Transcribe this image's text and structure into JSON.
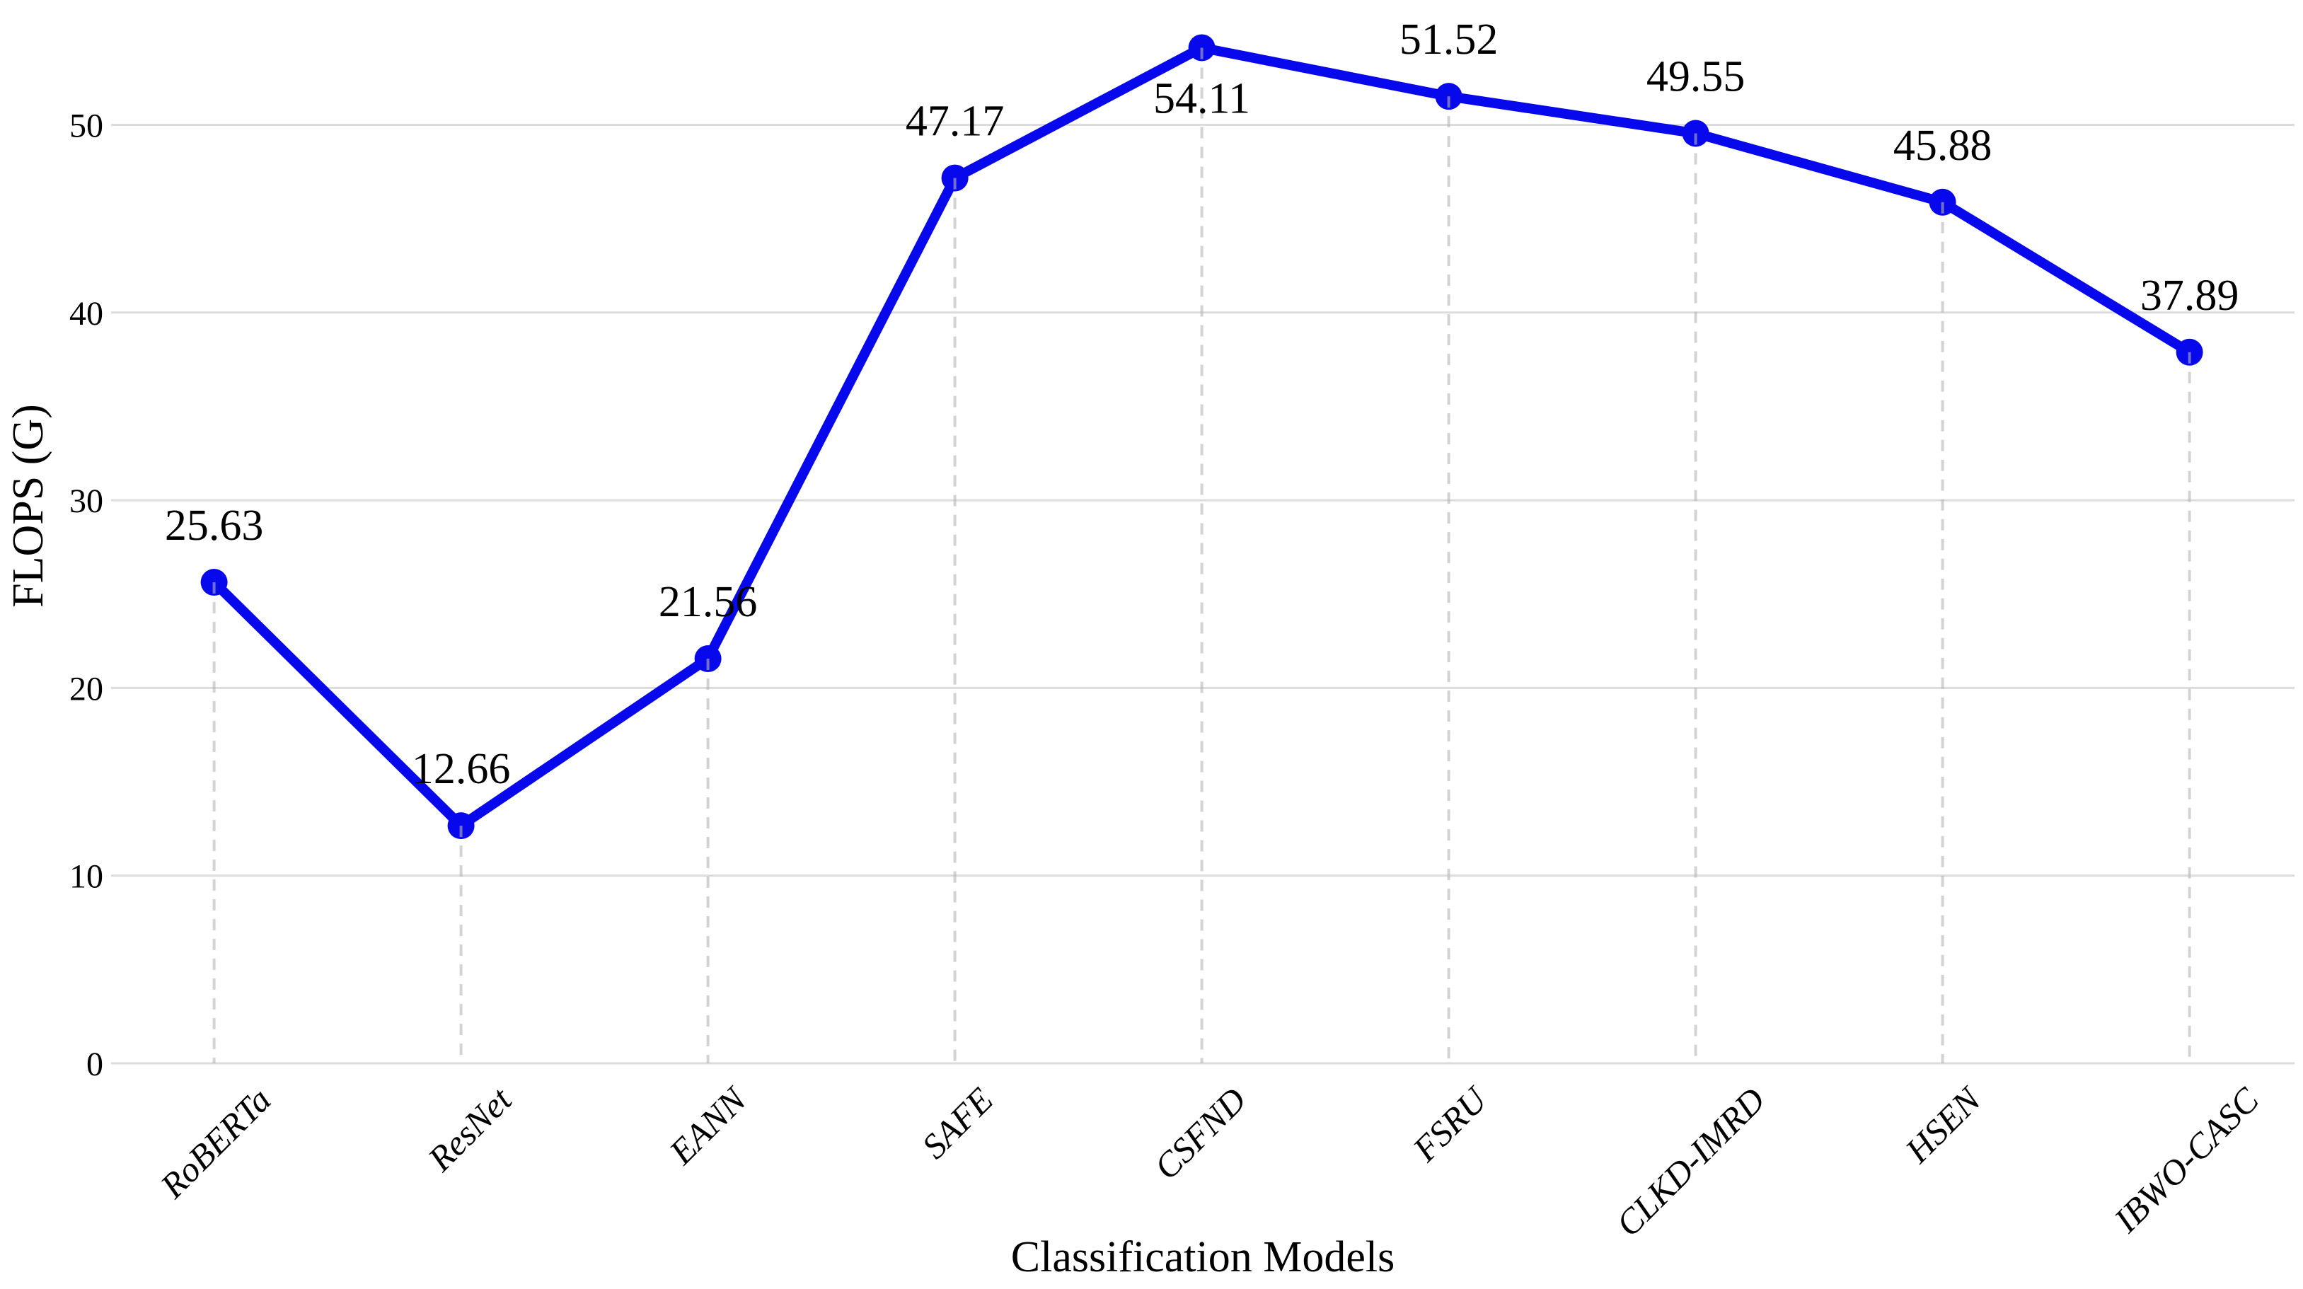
{
  "chart_data": {
    "type": "line",
    "title": "",
    "xlabel": "Classification Models",
    "ylabel": "FLOPS (G)",
    "categories": [
      "RoBERTa",
      "ResNet",
      "EANN",
      "SAFE",
      "CSFND",
      "FSRU",
      "CLKD-IMRD",
      "HSEN",
      "IBWO-CASC"
    ],
    "values": [
      25.63,
      12.66,
      21.56,
      47.17,
      54.11,
      51.52,
      49.55,
      45.88,
      37.89
    ],
    "value_labels": [
      "25.63",
      "12.66",
      "21.56",
      "47.17",
      "54.11",
      "51.52",
      "49.55",
      "45.88",
      "37.89"
    ],
    "label_placement": [
      "above",
      "above",
      "above",
      "above",
      "below",
      "above",
      "above",
      "above",
      "above"
    ],
    "yticks": [
      "0",
      "10",
      "20",
      "30",
      "40",
      "50"
    ],
    "ylim": [
      0,
      56.6
    ],
    "grid": "horizontal-solid",
    "point_guides": "vertical-dashed-to-baseline",
    "legend": "none",
    "marker": "circle",
    "colors": {
      "line": "#0808ec",
      "marker": "#0808ec",
      "gridline": "#dcdcdc",
      "guide": "#b5b5b5",
      "text": "#000000",
      "background": "#ffffff"
    }
  }
}
